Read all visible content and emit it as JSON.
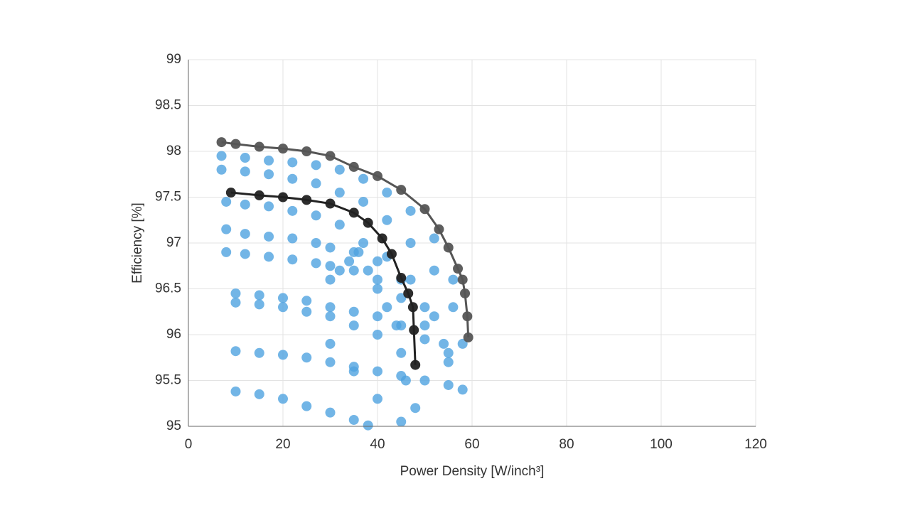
{
  "chart_data": {
    "type": "scatter",
    "xlabel": "Power Density [W/inch³]",
    "ylabel": "Efficiency [%]",
    "xlim": [
      0,
      120
    ],
    "xticks": [
      0,
      20,
      40,
      60,
      80,
      100,
      120
    ],
    "ylim": [
      95,
      99
    ],
    "yticks": [
      95,
      95.5,
      96,
      96.5,
      97,
      97.5,
      98,
      98.5,
      99
    ],
    "grid": true,
    "series": [
      {
        "color": "#4fa3e0",
        "x": [
          7,
          12,
          17,
          22,
          27,
          32,
          37,
          42,
          47,
          52,
          56
        ],
        "values": [
          97.95,
          97.93,
          97.9,
          97.88,
          97.85,
          97.8,
          97.7,
          97.55,
          97.35,
          97.05,
          96.6
        ]
      },
      {
        "color": "#4fa3e0",
        "x": [
          7,
          12,
          17,
          22,
          27,
          32,
          37,
          42,
          47,
          52,
          56,
          58
        ],
        "values": [
          97.8,
          97.78,
          97.75,
          97.7,
          97.65,
          97.55,
          97.45,
          97.25,
          97.0,
          96.7,
          96.3,
          95.9
        ]
      },
      {
        "color": "#4fa3e0",
        "x": [
          8,
          12,
          17,
          22,
          27,
          32,
          37,
          42,
          47,
          52,
          55
        ],
        "values": [
          97.45,
          97.42,
          97.4,
          97.35,
          97.3,
          97.2,
          97.0,
          96.85,
          96.6,
          96.2,
          95.8
        ]
      },
      {
        "color": "#4fa3e0",
        "x": [
          8,
          12,
          17,
          22,
          27,
          30,
          35,
          40,
          45,
          50,
          54
        ],
        "values": [
          97.15,
          97.1,
          97.07,
          97.05,
          97.0,
          96.95,
          96.9,
          96.8,
          96.6,
          96.3,
          95.9
        ]
      },
      {
        "color": "#4fa3e0",
        "x": [
          8,
          12,
          17,
          22,
          27,
          30,
          35,
          40,
          45,
          50
        ],
        "values": [
          96.9,
          96.88,
          96.85,
          96.82,
          96.78,
          96.75,
          96.7,
          96.6,
          96.4,
          96.1
        ]
      },
      {
        "color": "#4fa3e0",
        "x": [
          10,
          15,
          20,
          25,
          30,
          35,
          40,
          45,
          50,
          55
        ],
        "values": [
          96.45,
          96.43,
          96.4,
          96.37,
          96.3,
          96.25,
          96.2,
          96.1,
          95.95,
          95.7
        ]
      },
      {
        "color": "#4fa3e0",
        "x": [
          10,
          15,
          20,
          25,
          30,
          35,
          40,
          45
        ],
        "values": [
          96.35,
          96.33,
          96.3,
          96.25,
          96.2,
          96.1,
          96.0,
          95.8
        ]
      },
      {
        "color": "#4fa3e0",
        "x": [
          10,
          15,
          20,
          25,
          30,
          35,
          40,
          45,
          50,
          55,
          58
        ],
        "values": [
          95.82,
          95.8,
          95.78,
          95.75,
          95.7,
          95.65,
          95.6,
          95.55,
          95.5,
          95.45,
          95.4
        ]
      },
      {
        "color": "#4fa3e0",
        "x": [
          10,
          15,
          20,
          25,
          30,
          35,
          38
        ],
        "values": [
          95.38,
          95.35,
          95.3,
          95.22,
          95.15,
          95.07,
          95.01
        ]
      },
      {
        "color": "#4fa3e0",
        "x": [
          30,
          32,
          34,
          36,
          38,
          40,
          42,
          44,
          46,
          48,
          30,
          35,
          40,
          45
        ],
        "values": [
          96.6,
          96.7,
          96.8,
          96.9,
          96.7,
          96.5,
          96.3,
          96.1,
          95.5,
          95.2,
          95.9,
          95.6,
          95.3,
          95.05
        ]
      },
      {
        "color": "#555555",
        "line": true,
        "x": [
          7,
          10,
          15,
          20,
          25,
          30,
          35,
          40,
          45,
          50,
          53,
          55,
          57,
          58,
          58.5,
          59,
          59.2
        ],
        "values": [
          98.1,
          98.08,
          98.05,
          98.03,
          98.0,
          97.95,
          97.83,
          97.73,
          97.58,
          97.37,
          97.15,
          96.95,
          96.72,
          96.6,
          96.45,
          96.2,
          95.97
        ]
      },
      {
        "color": "#222222",
        "line": true,
        "x": [
          9,
          15,
          20,
          25,
          30,
          35,
          38,
          41,
          43,
          45,
          46.5,
          47.5,
          47.7,
          48
        ],
        "values": [
          97.55,
          97.52,
          97.5,
          97.47,
          97.43,
          97.33,
          97.22,
          97.05,
          96.88,
          96.62,
          96.45,
          96.3,
          96.05,
          95.67
        ]
      }
    ]
  }
}
